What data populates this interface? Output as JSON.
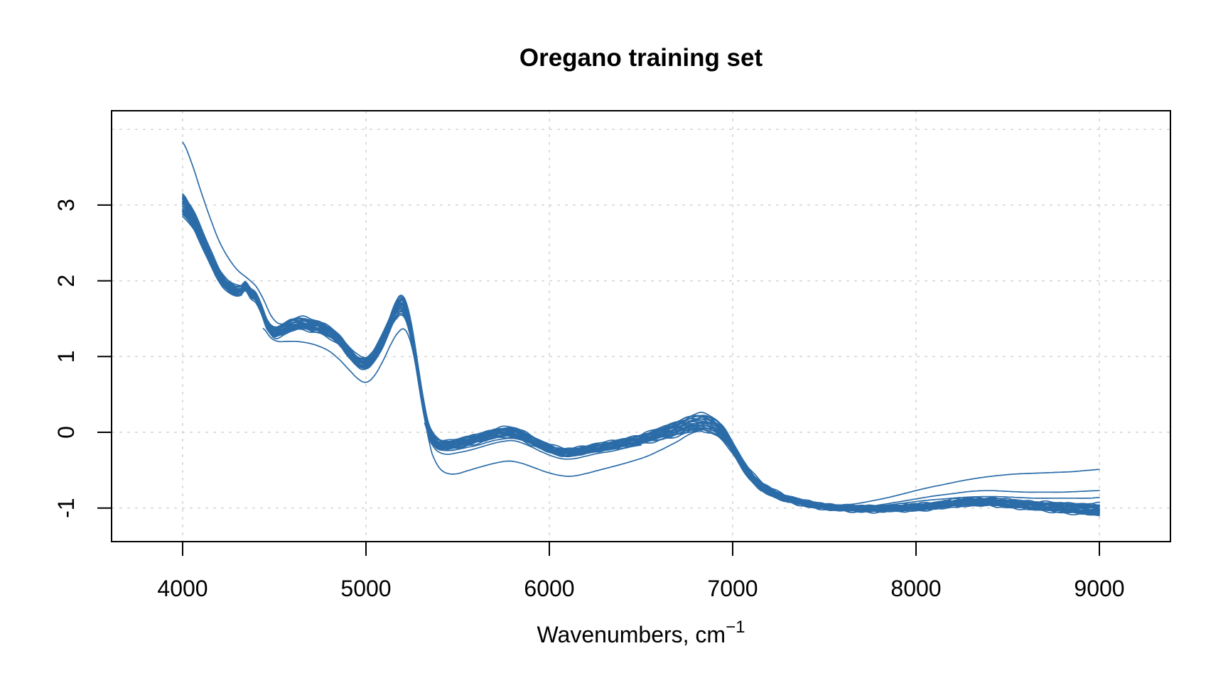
{
  "title": "Oregano training set",
  "x_axis": {
    "label": "Wavenumbers, cm",
    "label_superscript": "−1",
    "ticks": [
      4000,
      5000,
      6000,
      7000,
      8000,
      9000
    ]
  },
  "y_axis": {
    "label": "",
    "ticks": [
      -1,
      0,
      1,
      2,
      3
    ]
  },
  "colors": {
    "line": "#2B6CA8",
    "grid": "#d4d4d4",
    "axis": "#000000",
    "background": "#ffffff"
  },
  "chart_data": {
    "type": "line",
    "title": "Oregano training set",
    "xlabel": "Wavenumbers, cm⁻¹",
    "ylabel": "",
    "x_range_shown": [
      4000,
      9000
    ],
    "x_ticks": [
      4000,
      5000,
      6000,
      7000,
      8000,
      9000
    ],
    "y_ticks": [
      -1,
      0,
      1,
      2,
      3
    ],
    "x_gridlines": [
      4000,
      5000,
      6000,
      7000,
      8000,
      9000
    ],
    "y_gridlines": [
      -1,
      0,
      1,
      2,
      3,
      4
    ],
    "grid": true,
    "legend": null,
    "n_spectra_approx": 30,
    "line_color": "#2B6CA8",
    "series_model": {
      "description": "Bundle of NIR spectra: mean curve with a symmetric band of half-width given below, plus individual outlier/stray spectra traced separately. Values are absorbance-like units read from the y axis.",
      "n_band_lines": 24,
      "mean_spectrum": [
        [
          4000,
          3.0
        ],
        [
          4040,
          2.88
        ],
        [
          4080,
          2.7
        ],
        [
          4120,
          2.48
        ],
        [
          4160,
          2.26
        ],
        [
          4200,
          2.07
        ],
        [
          4240,
          1.95
        ],
        [
          4280,
          1.88
        ],
        [
          4320,
          1.88
        ],
        [
          4340,
          1.93
        ],
        [
          4370,
          1.83
        ],
        [
          4400,
          1.78
        ],
        [
          4430,
          1.62
        ],
        [
          4460,
          1.42
        ],
        [
          4500,
          1.32
        ],
        [
          4550,
          1.36
        ],
        [
          4600,
          1.42
        ],
        [
          4650,
          1.44
        ],
        [
          4700,
          1.41
        ],
        [
          4750,
          1.38
        ],
        [
          4800,
          1.32
        ],
        [
          4850,
          1.23
        ],
        [
          4900,
          1.08
        ],
        [
          4950,
          0.95
        ],
        [
          4990,
          0.91
        ],
        [
          5030,
          0.97
        ],
        [
          5080,
          1.16
        ],
        [
          5130,
          1.43
        ],
        [
          5170,
          1.63
        ],
        [
          5195,
          1.68
        ],
        [
          5220,
          1.58
        ],
        [
          5250,
          1.28
        ],
        [
          5280,
          0.85
        ],
        [
          5310,
          0.4
        ],
        [
          5340,
          0.05
        ],
        [
          5370,
          -0.1
        ],
        [
          5410,
          -0.16
        ],
        [
          5460,
          -0.17
        ],
        [
          5520,
          -0.14
        ],
        [
          5580,
          -0.1
        ],
        [
          5640,
          -0.06
        ],
        [
          5700,
          -0.02
        ],
        [
          5750,
          0.0
        ],
        [
          5800,
          0.0
        ],
        [
          5850,
          -0.04
        ],
        [
          5900,
          -0.1
        ],
        [
          5950,
          -0.16
        ],
        [
          6010,
          -0.22
        ],
        [
          6070,
          -0.26
        ],
        [
          6130,
          -0.26
        ],
        [
          6190,
          -0.23
        ],
        [
          6260,
          -0.2
        ],
        [
          6340,
          -0.17
        ],
        [
          6430,
          -0.13
        ],
        [
          6520,
          -0.08
        ],
        [
          6610,
          -0.02
        ],
        [
          6700,
          0.05
        ],
        [
          6770,
          0.11
        ],
        [
          6830,
          0.13
        ],
        [
          6890,
          0.09
        ],
        [
          6940,
          0.0
        ],
        [
          6990,
          -0.16
        ],
        [
          7040,
          -0.37
        ],
        [
          7090,
          -0.55
        ],
        [
          7150,
          -0.7
        ],
        [
          7220,
          -0.8
        ],
        [
          7300,
          -0.88
        ],
        [
          7400,
          -0.94
        ],
        [
          7500,
          -0.98
        ],
        [
          7600,
          -1.0
        ],
        [
          7700,
          -1.01
        ],
        [
          7800,
          -1.01
        ],
        [
          7900,
          -1.0
        ],
        [
          8000,
          -0.99
        ],
        [
          8100,
          -0.97
        ],
        [
          8200,
          -0.94
        ],
        [
          8300,
          -0.92
        ],
        [
          8400,
          -0.92
        ],
        [
          8500,
          -0.94
        ],
        [
          8600,
          -0.96
        ],
        [
          8700,
          -0.98
        ],
        [
          8800,
          -1.0
        ],
        [
          8900,
          -1.01
        ],
        [
          9000,
          -1.02
        ]
      ],
      "band_halfwidth": [
        [
          4000,
          0.15
        ],
        [
          4150,
          0.1
        ],
        [
          4300,
          0.07
        ],
        [
          4450,
          0.06
        ],
        [
          4600,
          0.085
        ],
        [
          4800,
          0.075
        ],
        [
          4990,
          0.075
        ],
        [
          5130,
          0.1
        ],
        [
          5195,
          0.13
        ],
        [
          5280,
          0.1
        ],
        [
          5400,
          0.065
        ],
        [
          5600,
          0.06
        ],
        [
          5800,
          0.065
        ],
        [
          6070,
          0.05
        ],
        [
          6400,
          0.055
        ],
        [
          6600,
          0.08
        ],
        [
          6830,
          0.12
        ],
        [
          7000,
          0.08
        ],
        [
          7200,
          0.05
        ],
        [
          7400,
          0.035
        ],
        [
          7700,
          0.038
        ],
        [
          8000,
          0.045
        ],
        [
          8300,
          0.048
        ],
        [
          8600,
          0.055
        ],
        [
          8800,
          0.065
        ],
        [
          9000,
          0.08
        ]
      ],
      "outlier_spectra": {
        "high_left": [
          [
            4000,
            3.83
          ],
          [
            4050,
            3.55
          ],
          [
            4100,
            3.18
          ],
          [
            4150,
            2.83
          ],
          [
            4200,
            2.52
          ],
          [
            4250,
            2.3
          ],
          [
            4300,
            2.14
          ],
          [
            4350,
            2.04
          ],
          [
            4400,
            1.93
          ],
          [
            4440,
            1.76
          ],
          [
            4480,
            1.55
          ],
          [
            4520,
            1.44
          ],
          [
            4570,
            1.44
          ],
          [
            4620,
            1.5
          ]
        ],
        "low_mid": [
          [
            4440,
            1.37
          ],
          [
            4480,
            1.25
          ],
          [
            4520,
            1.2
          ],
          [
            4570,
            1.2
          ],
          [
            4620,
            1.2
          ],
          [
            4680,
            1.18
          ],
          [
            4740,
            1.14
          ],
          [
            4800,
            1.07
          ],
          [
            4860,
            0.95
          ],
          [
            4910,
            0.82
          ],
          [
            4960,
            0.7
          ],
          [
            5000,
            0.66
          ],
          [
            5040,
            0.73
          ],
          [
            5090,
            0.93
          ],
          [
            5140,
            1.18
          ],
          [
            5180,
            1.33
          ],
          [
            5210,
            1.36
          ],
          [
            5240,
            1.22
          ],
          [
            5270,
            0.9
          ],
          [
            5300,
            0.48
          ],
          [
            5330,
            0.05
          ],
          [
            5360,
            -0.28
          ],
          [
            5400,
            -0.47
          ],
          [
            5440,
            -0.54
          ],
          [
            5490,
            -0.55
          ],
          [
            5550,
            -0.51
          ],
          [
            5620,
            -0.46
          ],
          [
            5700,
            -0.41
          ],
          [
            5780,
            -0.38
          ],
          [
            5850,
            -0.41
          ],
          [
            5920,
            -0.47
          ],
          [
            5990,
            -0.53
          ],
          [
            6060,
            -0.57
          ],
          [
            6120,
            -0.58
          ],
          [
            6190,
            -0.55
          ],
          [
            6270,
            -0.5
          ],
          [
            6350,
            -0.45
          ],
          [
            6440,
            -0.39
          ],
          [
            6530,
            -0.32
          ],
          [
            6620,
            -0.22
          ],
          [
            6700,
            -0.12
          ],
          [
            6770,
            -0.02
          ],
          [
            6830,
            0.02
          ]
        ],
        "low_pair_a": [
          [
            5320,
            0.12
          ],
          [
            5350,
            -0.12
          ],
          [
            5390,
            -0.25
          ],
          [
            5440,
            -0.29
          ],
          [
            5500,
            -0.27
          ],
          [
            5560,
            -0.24
          ],
          [
            5620,
            -0.2
          ],
          [
            5690,
            -0.15
          ],
          [
            5750,
            -0.12
          ],
          [
            5800,
            -0.11
          ],
          [
            5850,
            -0.14
          ],
          [
            5900,
            -0.19
          ],
          [
            5950,
            -0.25
          ],
          [
            6010,
            -0.31
          ],
          [
            6070,
            -0.35
          ],
          [
            6130,
            -0.35
          ],
          [
            6190,
            -0.32
          ],
          [
            6260,
            -0.28
          ],
          [
            6340,
            -0.25
          ],
          [
            6430,
            -0.2
          ],
          [
            6500,
            -0.17
          ]
        ],
        "low_pair_b": [
          [
            5340,
            0.0
          ],
          [
            5380,
            -0.2
          ],
          [
            5430,
            -0.24
          ],
          [
            5490,
            -0.23
          ],
          [
            5550,
            -0.2
          ],
          [
            5610,
            -0.17
          ],
          [
            5680,
            -0.12
          ],
          [
            5740,
            -0.09
          ],
          [
            5800,
            -0.08
          ],
          [
            5860,
            -0.11
          ],
          [
            5910,
            -0.16
          ],
          [
            5960,
            -0.21
          ],
          [
            6020,
            -0.27
          ],
          [
            6080,
            -0.31
          ],
          [
            6140,
            -0.31
          ],
          [
            6200,
            -0.28
          ],
          [
            6270,
            -0.25
          ],
          [
            6350,
            -0.22
          ],
          [
            6420,
            -0.18
          ]
        ],
        "high_right": [
          [
            7350,
            -0.92
          ],
          [
            7450,
            -0.95
          ],
          [
            7550,
            -0.96
          ],
          [
            7650,
            -0.95
          ],
          [
            7750,
            -0.91
          ],
          [
            7850,
            -0.86
          ],
          [
            7950,
            -0.8
          ],
          [
            8050,
            -0.74
          ],
          [
            8150,
            -0.69
          ],
          [
            8250,
            -0.64
          ],
          [
            8350,
            -0.6
          ],
          [
            8450,
            -0.57
          ],
          [
            8550,
            -0.55
          ],
          [
            8650,
            -0.54
          ],
          [
            8750,
            -0.53
          ],
          [
            8850,
            -0.52
          ],
          [
            8950,
            -0.5
          ],
          [
            9000,
            -0.49
          ]
        ],
        "mid_right_a": [
          [
            7500,
            -0.99
          ],
          [
            7600,
            -1.0
          ],
          [
            7700,
            -0.99
          ],
          [
            7800,
            -0.96
          ],
          [
            7900,
            -0.92
          ],
          [
            8000,
            -0.88
          ],
          [
            8100,
            -0.84
          ],
          [
            8200,
            -0.81
          ],
          [
            8300,
            -0.78
          ],
          [
            8400,
            -0.77
          ],
          [
            8500,
            -0.78
          ],
          [
            8600,
            -0.79
          ],
          [
            8700,
            -0.79
          ],
          [
            8800,
            -0.79
          ],
          [
            8900,
            -0.78
          ],
          [
            9000,
            -0.77
          ]
        ],
        "mid_right_b": [
          [
            7550,
            -1.0
          ],
          [
            7650,
            -1.01
          ],
          [
            7750,
            -0.99
          ],
          [
            7850,
            -0.96
          ],
          [
            7950,
            -0.93
          ],
          [
            8050,
            -0.9
          ],
          [
            8150,
            -0.88
          ],
          [
            8250,
            -0.86
          ],
          [
            8350,
            -0.85
          ],
          [
            8450,
            -0.85
          ],
          [
            8550,
            -0.86
          ],
          [
            8650,
            -0.87
          ],
          [
            8750,
            -0.87
          ],
          [
            8850,
            -0.87
          ],
          [
            8950,
            -0.87
          ],
          [
            9000,
            -0.86
          ]
        ]
      }
    }
  }
}
